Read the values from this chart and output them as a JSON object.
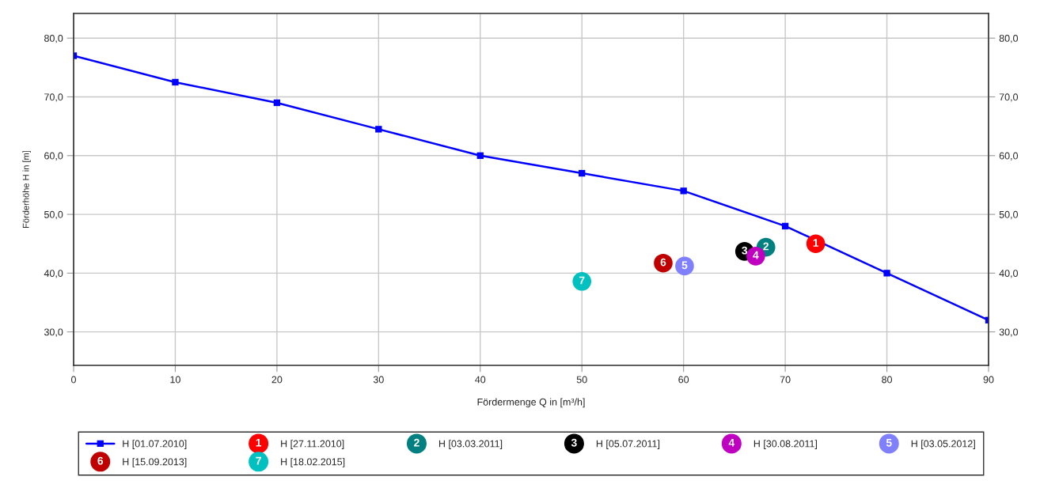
{
  "chart_data": {
    "type": "line",
    "xlabel": "Fördermenge Q in [m³/h]",
    "ylabel": "Förderhöhe H in [m]",
    "xlim": [
      0,
      90
    ],
    "xticks": [
      0,
      10,
      20,
      30,
      40,
      50,
      60,
      70,
      80,
      90
    ],
    "ylim": [
      24.3,
      84.2
    ],
    "yticks": [
      {
        "value": 30,
        "label": "30,0"
      },
      {
        "value": 40,
        "label": "40,0"
      },
      {
        "value": 50,
        "label": "50,0"
      },
      {
        "value": 60,
        "label": "60,0"
      },
      {
        "value": 70,
        "label": "70,0"
      },
      {
        "value": 80,
        "label": "80,0"
      }
    ],
    "y2lim": [
      24.3,
      84.2
    ],
    "y2ticks": [
      {
        "value": 30,
        "label": "30,0"
      },
      {
        "value": 40,
        "label": "40,0"
      },
      {
        "value": 50,
        "label": "50,0"
      },
      {
        "value": 60,
        "label": "60,0"
      },
      {
        "value": 70,
        "label": "70,0"
      },
      {
        "value": 80,
        "label": "80,0"
      }
    ],
    "grid": true,
    "legend": "bottom",
    "annotations": [
      {
        "text": "1",
        "x": 73,
        "y": 45
      },
      {
        "text": "2",
        "x": 68.1,
        "y": 44.4
      },
      {
        "text": "3",
        "x": 66,
        "y": 43.7
      },
      {
        "text": "4",
        "x": 67.1,
        "y": 42.9
      },
      {
        "text": "5",
        "x": 60.1,
        "y": 41.2
      },
      {
        "text": "6",
        "x": 58,
        "y": 41.7
      },
      {
        "text": "7",
        "x": 50,
        "y": 38.6
      }
    ],
    "series": [
      {
        "name": "H [01.07.2010]",
        "marker": "square",
        "line_style": "solid",
        "color": "#0000ff",
        "x": [
          0,
          10,
          20,
          30,
          40,
          50,
          60,
          70,
          80,
          90
        ],
        "values": [
          77,
          72.5,
          69,
          64.5,
          60,
          57,
          54,
          48,
          40,
          32
        ]
      },
      {
        "name": "H [27.11.2010]",
        "type": "scatter",
        "marker": "circle",
        "color": "#ff0000",
        "x": [
          73
        ],
        "values": [
          45
        ]
      },
      {
        "name": "H [03.03.2011]",
        "type": "scatter",
        "marker": "circle",
        "color": "#008080",
        "x": [
          68.1
        ],
        "values": [
          44.4
        ]
      },
      {
        "name": "H [05.07.2011]",
        "type": "scatter",
        "marker": "circle",
        "color": "#000000",
        "x": [
          66
        ],
        "values": [
          43.7
        ]
      },
      {
        "name": "H [30.08.2011]",
        "type": "scatter",
        "marker": "circle",
        "color": "#c000c0",
        "x": [
          67.1
        ],
        "values": [
          42.9
        ]
      },
      {
        "name": "H [03.05.2012]",
        "type": "scatter",
        "marker": "circle",
        "color": "#8080ff",
        "x": [
          60.1
        ],
        "values": [
          41.2
        ]
      },
      {
        "name": "H [15.09.2013]",
        "type": "scatter",
        "marker": "circle",
        "color": "#c00000",
        "x": [
          58
        ],
        "values": [
          41.7
        ]
      },
      {
        "name": "H [18.02.2015]",
        "type": "scatter",
        "marker": "circle",
        "color": "#00c0c0",
        "x": [
          50
        ],
        "values": [
          38.6
        ]
      }
    ]
  }
}
